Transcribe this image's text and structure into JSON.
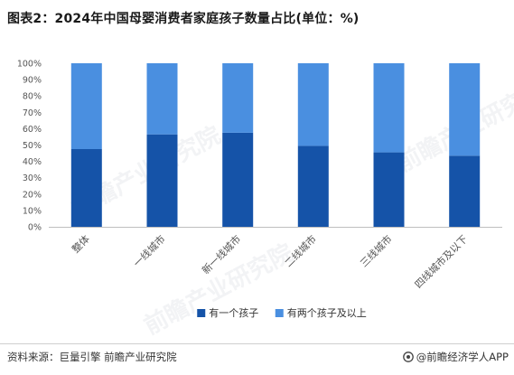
{
  "title": "图表2：2024年中国母婴消费者家庭孩子数量占比(单位：%)",
  "footer": {
    "source": "资料来源：巨量引擎 前瞻产业研究院",
    "brand": "@前瞻经济学人APP"
  },
  "watermark_text": "前瞻产业研究院",
  "colors": {
    "series_one": "#1553a8",
    "series_two": "#4a8fe0",
    "axis": "#bfbfbf",
    "text": "#555555"
  },
  "chart_data": {
    "type": "bar",
    "stacked": true,
    "percent": true,
    "categories": [
      "整体",
      "一线城市",
      "新一线城市",
      "二线城市",
      "三线城市",
      "四线城市及以下"
    ],
    "series": [
      {
        "name": "有一个孩子",
        "values": [
          47.5,
          56.5,
          57.5,
          49.5,
          45.5,
          43.5
        ]
      },
      {
        "name": "有两个孩子及以上",
        "values": [
          52.5,
          43.5,
          42.5,
          50.5,
          54.5,
          56.5
        ]
      }
    ],
    "ylim": [
      0,
      100
    ],
    "yticks": [
      "0%",
      "10%",
      "20%",
      "30%",
      "40%",
      "50%",
      "60%",
      "70%",
      "80%",
      "90%",
      "100%"
    ],
    "grid": false,
    "legend_position": "bottom"
  }
}
